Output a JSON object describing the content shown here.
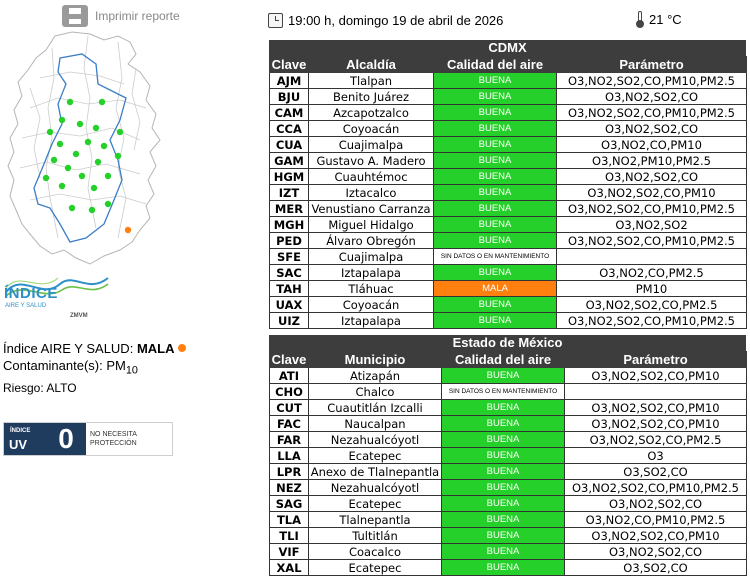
{
  "print": {
    "label": "Imprimir reporte",
    "icon": "printer-icon"
  },
  "header": {
    "datetime": "19:00 h, domingo 19 de abril de 2026",
    "temperature": "21 °C",
    "clock_icon": "clock-icon",
    "thermometer_icon": "thermometer-icon"
  },
  "colors": {
    "buena": "#26d02a",
    "mala": "#ff7f0f",
    "header_bg": "#3d3d3d",
    "uv_bg": "#1f3b5e",
    "logo_blue": "#2c8fc9"
  },
  "logo": {
    "word": "ÍNDICE",
    "sub": "AIRE Y SALUD",
    "zmvm": "ZMVM"
  },
  "index": {
    "prefix": "Índice AIRE Y SALUD:",
    "status": "MALA",
    "status_color": "#ff7f0f",
    "pollutant_prefix": "Contaminante(s):",
    "pollutant_main": "PM",
    "pollutant_sub": "10",
    "risk": "Riesgo: ALTO"
  },
  "uv": {
    "label_small": "ÍNDICE",
    "label_big": "UV",
    "value": "0",
    "message": "NO NECESITA PROTECCIÓN"
  },
  "cdmx": {
    "title": "CDMX",
    "headers": [
      "Clave",
      "Alcaldía",
      "Calidad del aire",
      "Parámetro"
    ],
    "rows": [
      {
        "code": "AJM",
        "place": "Tlalpan",
        "quality": "BUENA",
        "param": "O3,NO2,SO2,CO,PM10,PM2.5"
      },
      {
        "code": "BJU",
        "place": "Benito Juárez",
        "quality": "BUENA",
        "param": "O3,NO2,SO2,CO"
      },
      {
        "code": "CAM",
        "place": "Azcapotzalco",
        "quality": "BUENA",
        "param": "O3,NO2,SO2,CO,PM10,PM2.5"
      },
      {
        "code": "CCA",
        "place": "Coyoacán",
        "quality": "BUENA",
        "param": "O3,NO2,SO2,CO"
      },
      {
        "code": "CUA",
        "place": "Cuajimalpa",
        "quality": "BUENA",
        "param": "O3,NO2,CO,PM10"
      },
      {
        "code": "GAM",
        "place": "Gustavo A. Madero",
        "quality": "BUENA",
        "param": "O3,NO2,PM10,PM2.5"
      },
      {
        "code": "HGM",
        "place": "Cuauhtémoc",
        "quality": "BUENA",
        "param": "O3,NO2,SO2,CO"
      },
      {
        "code": "IZT",
        "place": "Iztacalco",
        "quality": "BUENA",
        "param": "O3,NO2,SO2,CO,PM10"
      },
      {
        "code": "MER",
        "place": "Venustiano Carranza",
        "quality": "BUENA",
        "param": "O3,NO2,SO2,CO,PM10,PM2.5"
      },
      {
        "code": "MGH",
        "place": "Miguel Hidalgo",
        "quality": "BUENA",
        "param": "O3,NO2,SO2"
      },
      {
        "code": "PED",
        "place": "Álvaro Obregón",
        "quality": "BUENA",
        "param": "O3,NO2,SO2,CO,PM10,PM2.5"
      },
      {
        "code": "SFE",
        "place": "Cuajimalpa",
        "quality": "SIN DATOS O EN MANTENIMIENTO",
        "param": ""
      },
      {
        "code": "SAC",
        "place": "Iztapalapa",
        "quality": "BUENA",
        "param": "O3,NO2,CO,PM2.5"
      },
      {
        "code": "TAH",
        "place": "Tláhuac",
        "quality": "MALA",
        "param": "PM10"
      },
      {
        "code": "UAX",
        "place": "Coyoacán",
        "quality": "BUENA",
        "param": "O3,NO2,SO2,CO,PM2.5"
      },
      {
        "code": "UIZ",
        "place": "Iztapalapa",
        "quality": "BUENA",
        "param": "O3,NO2,SO2,CO,PM10,PM2.5"
      }
    ]
  },
  "edomex": {
    "title": "Estado de México",
    "headers": [
      "Clave",
      "Municipio",
      "Calidad del aire",
      "Parámetro"
    ],
    "rows": [
      {
        "code": "ATI",
        "place": "Atizapán",
        "quality": "BUENA",
        "param": "O3,NO2,SO2,CO,PM10"
      },
      {
        "code": "CHO",
        "place": "Chalco",
        "quality": "SIN DATOS O EN MANTENIMIENTO",
        "param": ""
      },
      {
        "code": "CUT",
        "place": "Cuautitlán Izcalli",
        "quality": "BUENA",
        "param": "O3,NO2,SO2,CO,PM10"
      },
      {
        "code": "FAC",
        "place": "Naucalpan",
        "quality": "BUENA",
        "param": "O3,NO2,SO2,CO,PM10"
      },
      {
        "code": "FAR",
        "place": "Nezahualcóyotl",
        "quality": "BUENA",
        "param": "O3,NO2,SO2,CO,PM2.5"
      },
      {
        "code": "LLA",
        "place": "Ecatepec",
        "quality": "BUENA",
        "param": "O3"
      },
      {
        "code": "LPR",
        "place": "Anexo de Tlalnepantla",
        "quality": "BUENA",
        "param": "O3,SO2,CO"
      },
      {
        "code": "NEZ",
        "place": "Nezahualcóyotl",
        "quality": "BUENA",
        "param": "O3,NO2,SO2,CO,PM10,PM2.5"
      },
      {
        "code": "SAG",
        "place": "Ecatepec",
        "quality": "BUENA",
        "param": "O3,NO2,SO2,CO"
      },
      {
        "code": "TLA",
        "place": "Tlalnepantla",
        "quality": "BUENA",
        "param": "O3,NO2,CO,PM10,PM2.5"
      },
      {
        "code": "TLI",
        "place": "Tultitlán",
        "quality": "BUENA",
        "param": "O3,NO2,SO2,CO,PM10"
      },
      {
        "code": "VIF",
        "place": "Coacalco",
        "quality": "BUENA",
        "param": "O3,NO2,SO2,CO"
      },
      {
        "code": "XAL",
        "place": "Ecatepec",
        "quality": "BUENA",
        "param": "O3,SO2,CO"
      }
    ]
  },
  "map": {
    "icon": "station-map",
    "stations": [
      {
        "status": "BUENA"
      },
      {
        "status": "BUENA"
      },
      {
        "status": "BUENA"
      },
      {
        "status": "BUENA"
      },
      {
        "status": "BUENA"
      },
      {
        "status": "BUENA"
      },
      {
        "status": "BUENA"
      },
      {
        "status": "BUENA"
      },
      {
        "status": "BUENA"
      },
      {
        "status": "BUENA"
      },
      {
        "status": "BUENA"
      },
      {
        "status": "BUENA"
      },
      {
        "status": "BUENA"
      },
      {
        "status": "BUENA"
      },
      {
        "status": "BUENA"
      },
      {
        "status": "BUENA"
      },
      {
        "status": "BUENA"
      },
      {
        "status": "BUENA"
      },
      {
        "status": "BUENA"
      },
      {
        "status": "BUENA"
      },
      {
        "status": "BUENA"
      },
      {
        "status": "BUENA"
      },
      {
        "status": "BUENA"
      },
      {
        "status": "MALA"
      }
    ]
  }
}
